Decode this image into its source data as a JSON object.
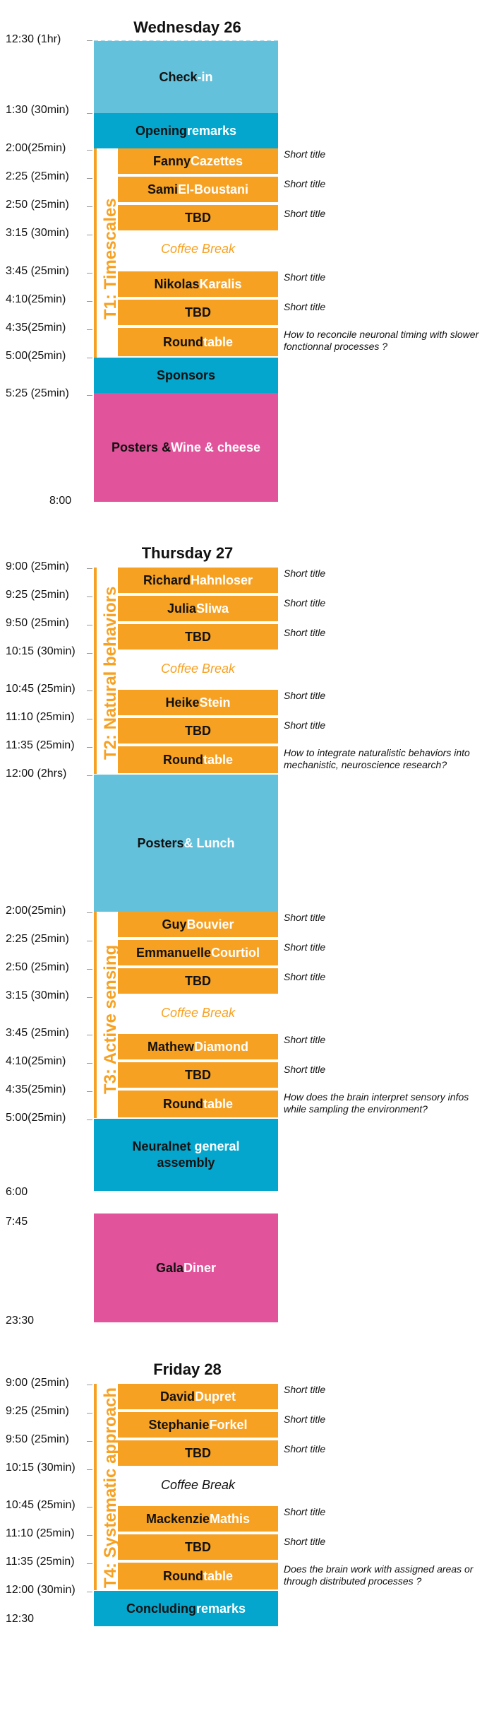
{
  "days": [
    {
      "title": "Wednesday 26",
      "times": [
        "12:30 (1hr)",
        "1:30 (30min)",
        "2:00(25min)",
        "2:25 (25min)",
        "2:50 (25min)",
        "3:15 (30min)",
        "3:45 (25min)",
        "4:10(25min)",
        "4:35(25min)",
        "5:00(25min)",
        "5:25 (25min)",
        "8:00"
      ],
      "blocks": {
        "checkin": [
          "Check",
          "-in"
        ],
        "opening": [
          "Opening",
          " remarks"
        ],
        "sponsors": [
          "Sponsors"
        ],
        "posters": [
          "Posters &",
          " Wine & cheese"
        ]
      },
      "theme": "T1: Timescales",
      "talks": [
        {
          "first": "Fanny",
          "last": " Cazettes",
          "note": "Short title"
        },
        {
          "first": "Sami",
          "last": " El-Boustani",
          "note": "Short title"
        },
        {
          "first": "TBD",
          "last": "",
          "note": "Short title"
        },
        {
          "first": "Nikolas",
          "last": " Karalis",
          "note": "Short title"
        },
        {
          "first": "TBD",
          "last": "",
          "note": "Short title"
        },
        {
          "first": "Round",
          "last": "table",
          "note": "How to reconcile neuronal timing with slower fonctionnal processes ?"
        }
      ],
      "coffee": "Coffee Break"
    },
    {
      "title": "Thursday 27",
      "times": [
        "9:00 (25min)",
        "9:25 (25min)",
        "9:50 (25min)",
        "10:15 (30min)",
        "10:45 (25min)",
        "11:10 (25min)",
        "11:35 (25min)",
        "12:00 (2hrs)",
        "2:00(25min)",
        "2:25 (25min)",
        "2:50 (25min)",
        "3:15 (30min)",
        "3:45 (25min)",
        "4:10(25min)",
        "4:35(25min)",
        "5:00(25min)",
        "6:00",
        "7:45",
        "23:30"
      ],
      "theme2": "T2: Natural behaviors",
      "theme3": "T3: Active sensing",
      "talks2": [
        {
          "first": "Richard",
          "last": " Hahnloser",
          "note": "Short title"
        },
        {
          "first": "Julia",
          "last": " Sliwa",
          "note": "Short title"
        },
        {
          "first": "TBD",
          "last": "",
          "note": "Short title"
        },
        {
          "first": "Heike",
          "last": " Stein",
          "note": "Short title"
        },
        {
          "first": "TBD",
          "last": "",
          "note": "Short title"
        },
        {
          "first": "Round",
          "last": "table",
          "note": "How to integrate naturalistic behaviors into mechanistic, neuroscience research?"
        }
      ],
      "talks3": [
        {
          "first": "Guy",
          "last": " Bouvier",
          "note": "Short title"
        },
        {
          "first": "Emmanuelle",
          "last": " Courtiol",
          "note": "Short title"
        },
        {
          "first": "TBD",
          "last": "",
          "note": "Short title"
        },
        {
          "first": "Mathew",
          "last": " Diamond",
          "note": "Short title"
        },
        {
          "first": "TBD",
          "last": "",
          "note": "Short title"
        },
        {
          "first": "Round",
          "last": "table",
          "note": "How does the brain interpret sensory infos while sampling the environment?"
        }
      ],
      "coffee": "Coffee Break",
      "blocks": {
        "lunch": [
          "Posters",
          " & Lunch"
        ],
        "assembly": [
          "Neuralnet",
          " general",
          "assembly"
        ],
        "gala": [
          "Gala",
          " Diner"
        ]
      }
    },
    {
      "title": "Friday 28",
      "times": [
        "9:00 (25min)",
        "9:25 (25min)",
        "9:50 (25min)",
        "10:15 (30min)",
        "10:45 (25min)",
        "11:10 (25min)",
        "11:35 (25min)",
        "12:00 (30min)",
        "12:30"
      ],
      "theme": "T4: Systematic approach",
      "talks": [
        {
          "first": "David",
          "last": " Dupret",
          "note": "Short title"
        },
        {
          "first": "Stephanie",
          "last": " Forkel",
          "note": "Short title"
        },
        {
          "first": "TBD",
          "last": "",
          "note": "Short title"
        },
        {
          "first": "Mackenzie",
          "last": " Mathis",
          "note": "Short title"
        },
        {
          "first": "TBD",
          "last": "",
          "note": "Short title"
        },
        {
          "first": "Round",
          "last": "table",
          "note": "Does the brain work with assigned areas or through distributed processes ?"
        }
      ],
      "coffee": "Coffee Break",
      "blocks": {
        "concluding": [
          "Concluding",
          " remarks"
        ]
      }
    }
  ],
  "colors": {
    "talk": "#f7a122",
    "session": "#04a6cd",
    "light_session": "#64c1db",
    "social": "#e1539b"
  }
}
